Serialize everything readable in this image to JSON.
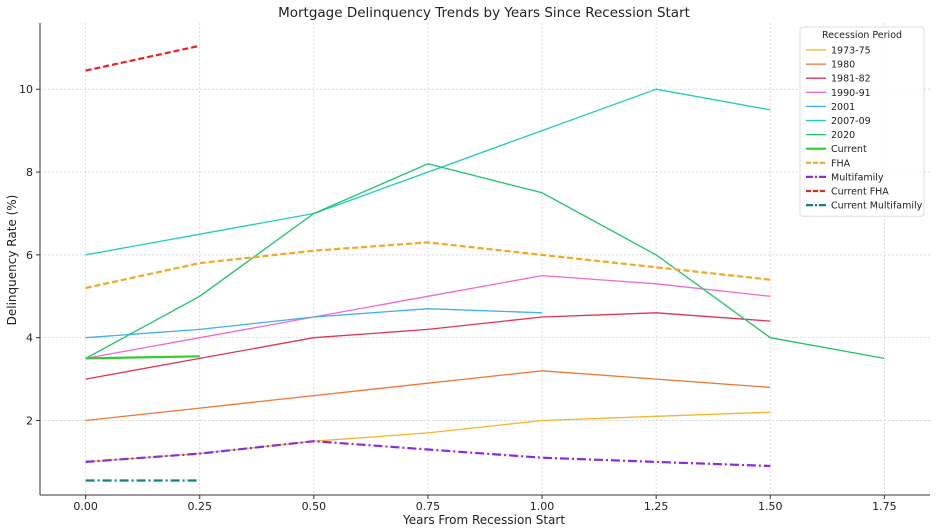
{
  "chart_data": {
    "type": "line",
    "title": "Mortgage Delinquency Trends by Years Since Recession Start",
    "xlabel": "Years From Recession Start",
    "ylabel": "Delinquency Rate (%)",
    "xlim": [
      -0.1,
      1.85
    ],
    "ylim": [
      0.2,
      11.6
    ],
    "xticks": [
      0.0,
      0.25,
      0.5,
      0.75,
      1.0,
      1.25,
      1.5,
      1.75
    ],
    "xtick_labels": [
      "0.00",
      "0.25",
      "0.50",
      "0.75",
      "1.00",
      "1.25",
      "1.50",
      "1.75"
    ],
    "yticks": [
      2,
      4,
      6,
      8,
      10
    ],
    "ytick_labels": [
      "2",
      "4",
      "6",
      "8",
      "10"
    ],
    "grid": true,
    "legend": {
      "title": "Recession Period",
      "placement": "top-right"
    },
    "series": [
      {
        "name": "1973-75",
        "color": "#f5b52e",
        "dash": "solid",
        "width": "thin",
        "x": [
          0,
          0.25,
          0.5,
          0.75,
          1.0,
          1.25,
          1.5
        ],
        "y": [
          1.0,
          1.2,
          1.5,
          1.7,
          2.0,
          2.1,
          2.2
        ]
      },
      {
        "name": "1980",
        "color": "#ee7733",
        "dash": "solid",
        "width": "thin",
        "x": [
          0,
          0.25,
          0.5,
          0.75,
          1.0,
          1.25,
          1.5
        ],
        "y": [
          2.0,
          2.3,
          2.6,
          2.9,
          3.2,
          3.0,
          2.8
        ]
      },
      {
        "name": "1981-82",
        "color": "#dc3558",
        "dash": "solid",
        "width": "thin",
        "x": [
          0,
          0.25,
          0.5,
          0.75,
          1.0,
          1.25,
          1.5
        ],
        "y": [
          3.0,
          3.5,
          4.0,
          4.2,
          4.5,
          4.6,
          4.4
        ]
      },
      {
        "name": "1990-91",
        "color": "#ee6ad2",
        "dash": "solid",
        "width": "thin",
        "x": [
          0,
          0.25,
          0.5,
          0.75,
          1.0,
          1.25,
          1.5
        ],
        "y": [
          3.5,
          4.0,
          4.5,
          5.0,
          5.5,
          5.3,
          5.0
        ]
      },
      {
        "name": "2001",
        "color": "#3fb1e8",
        "dash": "solid",
        "width": "thin",
        "x": [
          0,
          0.25,
          0.5,
          0.75,
          1.0
        ],
        "y": [
          4.0,
          4.2,
          4.5,
          4.7,
          4.6
        ]
      },
      {
        "name": "2007-09",
        "color": "#22cbc4",
        "dash": "solid",
        "width": "thin",
        "x": [
          0,
          0.25,
          0.5,
          0.75,
          1.0,
          1.25,
          1.5
        ],
        "y": [
          6.0,
          6.5,
          7.0,
          8.0,
          9.0,
          10.0,
          9.5
        ]
      },
      {
        "name": "2020",
        "color": "#1fc46a",
        "dash": "solid",
        "width": "thin",
        "x": [
          0,
          0.25,
          0.5,
          0.75,
          1.0,
          1.25,
          1.5,
          1.75
        ],
        "y": [
          3.5,
          5.0,
          7.0,
          8.2,
          7.5,
          6.0,
          4.0,
          3.5
        ]
      },
      {
        "name": "Current",
        "color": "#33cc33",
        "dash": "solid",
        "width": "thick",
        "x": [
          0,
          0.25
        ],
        "y": [
          3.5,
          3.55
        ]
      },
      {
        "name": "FHA",
        "color": "#f5a623",
        "dash": "dashed",
        "width": "thick",
        "x": [
          0,
          0.25,
          0.5,
          0.75,
          1.0,
          1.25,
          1.5
        ],
        "y": [
          5.2,
          5.8,
          6.1,
          6.3,
          6.0,
          5.7,
          5.4
        ]
      },
      {
        "name": "Multifamily",
        "color": "#8a2be2",
        "dash": "dashdot",
        "width": "thick",
        "x": [
          0,
          0.25,
          0.5,
          0.75,
          1.0,
          1.25,
          1.5
        ],
        "y": [
          1.0,
          1.2,
          1.5,
          1.3,
          1.1,
          1.0,
          0.9
        ]
      },
      {
        "name": "Current FHA",
        "color": "#ee2020",
        "dash": "dashed",
        "width": "thick",
        "x": [
          0,
          0.25
        ],
        "y": [
          10.45,
          11.05
        ]
      },
      {
        "name": "Current Multifamily",
        "color": "#118080",
        "dash": "dashdot",
        "width": "thick",
        "x": [
          0,
          0.25
        ],
        "y": [
          0.55,
          0.55
        ]
      }
    ]
  }
}
